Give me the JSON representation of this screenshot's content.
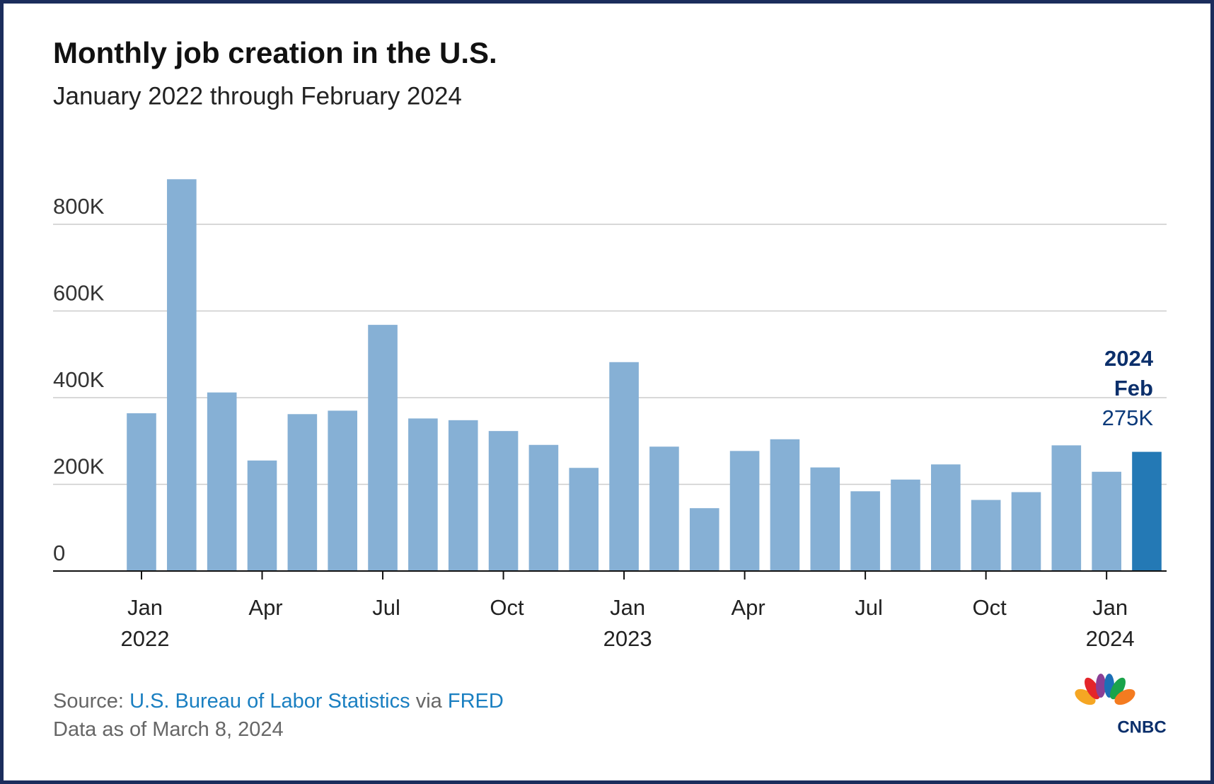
{
  "chart_data": {
    "type": "bar",
    "title": "Monthly job creation in the U.S.",
    "subtitle": "January 2022 through February 2024",
    "categories": [
      "Jan\n2022",
      null,
      null,
      "Apr",
      null,
      null,
      "Jul",
      null,
      null,
      "Oct",
      null,
      null,
      "Jan\n2023",
      null,
      null,
      "Apr",
      null,
      null,
      "Jul",
      null,
      null,
      "Oct",
      null,
      null,
      "Jan\n2024",
      null
    ],
    "values": [
      364000,
      904000,
      412000,
      255000,
      362000,
      370000,
      568000,
      352000,
      348000,
      323000,
      291000,
      238000,
      482000,
      287000,
      145000,
      277000,
      304000,
      239000,
      184000,
      211000,
      246000,
      164000,
      182000,
      290000,
      229000,
      275000
    ],
    "value_labels": [
      null,
      null,
      null,
      null,
      null,
      null,
      null,
      null,
      null,
      null,
      null,
      null,
      null,
      null,
      null,
      null,
      null,
      null,
      null,
      null,
      null,
      null,
      null,
      null,
      null,
      "275K"
    ],
    "colors": [
      "#86b0d5",
      "#86b0d5",
      "#86b0d5",
      "#86b0d5",
      "#86b0d5",
      "#86b0d5",
      "#86b0d5",
      "#86b0d5",
      "#86b0d5",
      "#86b0d5",
      "#86b0d5",
      "#86b0d5",
      "#86b0d5",
      "#86b0d5",
      "#86b0d5",
      "#86b0d5",
      "#86b0d5",
      "#86b0d5",
      "#86b0d5",
      "#86b0d5",
      "#86b0d5",
      "#86b0d5",
      "#86b0d5",
      "#86b0d5",
      "#86b0d5",
      "#2479b5"
    ],
    "annotation": [
      "2024",
      "Feb"
    ],
    "ylim": [
      0,
      920000
    ],
    "yticks": [
      {
        "value": 0,
        "label": "0"
      },
      {
        "value": 200000,
        "label": "200K"
      },
      {
        "value": 400000,
        "label": "400K"
      },
      {
        "value": 600000,
        "label": "600K"
      },
      {
        "value": 800000,
        "label": "800K"
      }
    ],
    "grid": true
  },
  "footer": {
    "source_prefix": "Source:",
    "source_name": "U.S. Bureau of Labor Statistics",
    "source_joiner": "via",
    "source_site": "FRED",
    "note": "Data as of March 8, 2024",
    "logo": "CNBC"
  }
}
